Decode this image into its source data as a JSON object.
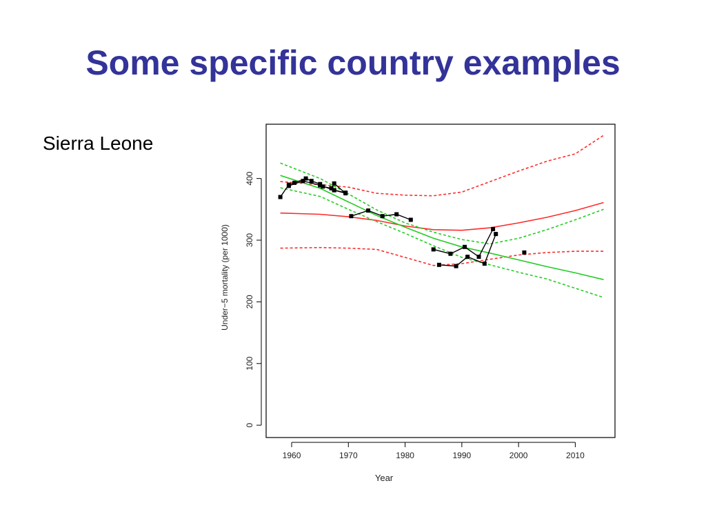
{
  "slide": {
    "title": "Some specific country examples",
    "subtitle": "Sierra Leone"
  },
  "colors": {
    "title": "#333399",
    "observed": "#000000",
    "red_fit": "#ff2a2a",
    "green_fit": "#22cc22"
  },
  "chart_data": {
    "type": "line",
    "xlabel": "Year",
    "ylabel": "Under−5 mortality (per 1000)",
    "xlim": [
      1955.5,
      2017
    ],
    "ylim": [
      -20,
      488
    ],
    "xticks": [
      1960,
      1970,
      1980,
      1990,
      2000,
      2010
    ],
    "yticks": [
      0,
      100,
      200,
      300,
      400
    ],
    "grid": false,
    "observed_series": [
      {
        "points": [
          [
            1958,
            370
          ],
          [
            1959.5,
            390
          ],
          [
            1960.5,
            393
          ],
          [
            1962.5,
            400
          ],
          [
            1963.5,
            396
          ],
          [
            1965,
            391
          ],
          [
            1965.5,
            387
          ],
          [
            1967,
            384
          ],
          [
            1967.5,
            392
          ],
          [
            1969.5,
            376
          ],
          [
            1967.5,
            381
          ]
        ]
      },
      {
        "points": [
          [
            1959.5,
            388
          ],
          [
            1962,
            396
          ],
          [
            1965,
            389
          ],
          [
            1967.5,
            381
          ],
          [
            1969.5,
            377
          ]
        ]
      },
      {
        "points": [
          [
            1970.5,
            339
          ],
          [
            1973.5,
            348
          ],
          [
            1976,
            339
          ],
          [
            1978.5,
            342
          ],
          [
            1981,
            333
          ]
        ]
      },
      {
        "points": [
          [
            1985,
            285
          ],
          [
            1988,
            278
          ],
          [
            1990.5,
            289
          ],
          [
            1993,
            273
          ],
          [
            1995.5,
            318
          ]
        ]
      },
      {
        "points": [
          [
            1986,
            260
          ],
          [
            1989,
            258
          ],
          [
            1991,
            273
          ],
          [
            1994,
            262
          ],
          [
            1996,
            310
          ]
        ]
      },
      {
        "points": [
          [
            2001,
            280
          ]
        ]
      }
    ],
    "fits": [
      {
        "color": "red",
        "style": "solid",
        "x": [
          1958,
          1965,
          1970,
          1975,
          1980,
          1985,
          1990,
          1995,
          2000,
          2005,
          2010,
          2015
        ],
        "y": [
          344,
          342,
          338,
          332,
          323,
          317,
          316,
          320,
          328,
          337,
          348,
          361
        ]
      },
      {
        "color": "red",
        "style": "dashed",
        "x": [
          1958,
          1965,
          1970,
          1975,
          1980,
          1985,
          1990,
          1995,
          2000,
          2005,
          2010,
          2015
        ],
        "y": [
          395,
          390,
          386,
          376,
          373,
          372,
          378,
          395,
          412,
          428,
          440,
          470
        ]
      },
      {
        "color": "red",
        "style": "dashed",
        "x": [
          1958,
          1965,
          1970,
          1975,
          1980,
          1985,
          1990,
          1995,
          2000,
          2005,
          2010,
          2015
        ],
        "y": [
          287,
          288,
          287,
          285,
          272,
          259,
          262,
          269,
          276,
          280,
          282,
          282
        ]
      },
      {
        "color": "green",
        "style": "solid",
        "x": [
          1958,
          1965,
          1970,
          1975,
          1980,
          1985,
          1990,
          1995,
          2000,
          2005,
          2010,
          2015
        ],
        "y": [
          405,
          384,
          362,
          340,
          321,
          303,
          289,
          279,
          268,
          257,
          247,
          236
        ]
      },
      {
        "color": "green",
        "style": "dashed",
        "x": [
          1958,
          1965,
          1970,
          1975,
          1980,
          1985,
          1990,
          1995,
          2000,
          2005,
          2010,
          2015
        ],
        "y": [
          425,
          400,
          375,
          349,
          328,
          313,
          301,
          294,
          303,
          317,
          333,
          350
        ]
      },
      {
        "color": "green",
        "style": "dashed",
        "x": [
          1958,
          1965,
          1970,
          1975,
          1980,
          1985,
          1990,
          1995,
          2000,
          2005,
          2010,
          2015
        ],
        "y": [
          385,
          371,
          350,
          330,
          311,
          291,
          272,
          260,
          248,
          237,
          222,
          207
        ]
      }
    ]
  }
}
